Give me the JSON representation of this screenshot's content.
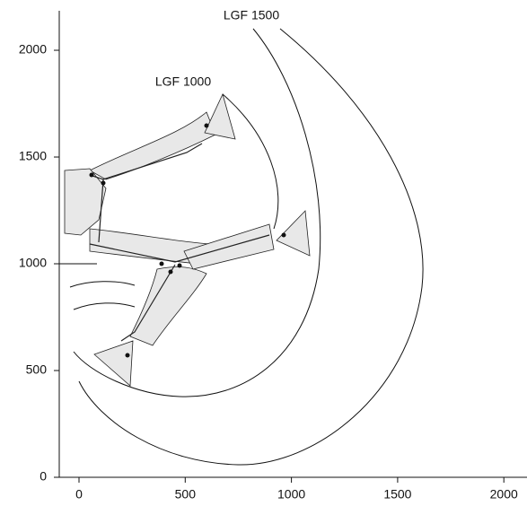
{
  "axes": {
    "xlim": [
      -93,
      2109
    ],
    "ylim": [
      0,
      2185
    ],
    "xticks": [
      0,
      500,
      1000,
      1500,
      2000
    ],
    "yticks": [
      0,
      500,
      1000,
      1500,
      2000
    ]
  },
  "labels": [
    "LGF 1500",
    "LGF 1000"
  ]
}
